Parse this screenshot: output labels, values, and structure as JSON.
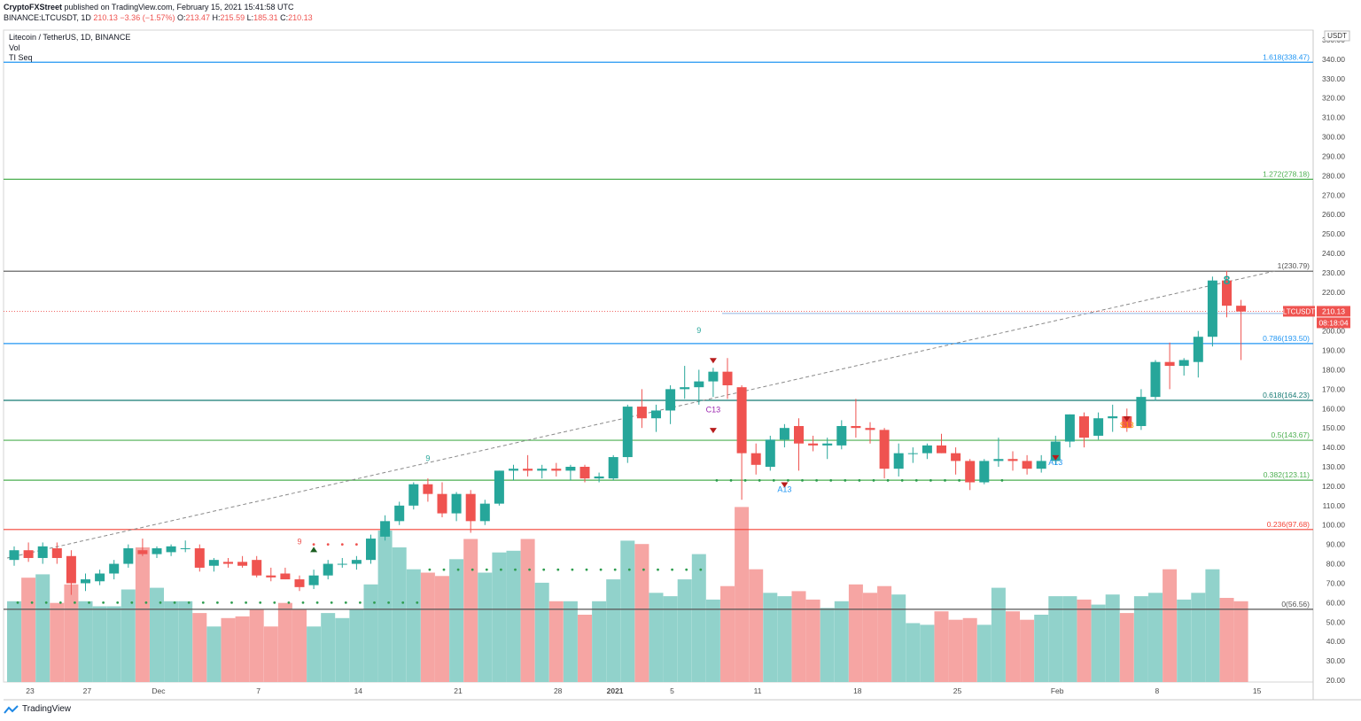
{
  "header": {
    "author": "CryptoFXStreet",
    "published": "published on TradingView.com, February 15, 2021 15:41:58 UTC",
    "symbol_line": {
      "exchange_symbol": "BINANCE:LTCUSDT, 1D",
      "last": "210.13",
      "change": "−3.36 (−1.57%)",
      "o_label": "O:",
      "o": "213.47",
      "h_label": "H:",
      "h": "215.59",
      "l_label": "L:",
      "l": "185.31",
      "c_label": "C:",
      "c": "210.13"
    }
  },
  "legend": {
    "title": "Litecoin / TetherUS, 1D, BINANCE",
    "indicator1": "Vol",
    "indicator2": "TI Seq"
  },
  "footer": {
    "brand": "TradingView"
  },
  "colors": {
    "up": "#26a69a",
    "down": "#ef5350",
    "vol_up": "#91d2cb",
    "vol_down": "#f6a5a3",
    "axis_text": "#4a4a4a",
    "fib_blue": "#2196f3",
    "fib_green": "#4caf50",
    "fib_red": "#f44336",
    "fib_dark": "#555555",
    "fib_teal": "#167a74"
  },
  "chart_data": {
    "type": "candlestick",
    "currency_label": "USDT",
    "price_axis": {
      "min": 20,
      "max": 350,
      "ticks": [
        20,
        30,
        40,
        50,
        60,
        70,
        80,
        90,
        100,
        110,
        120,
        130,
        140,
        150,
        160,
        170,
        180,
        190,
        200,
        210,
        220,
        230,
        240,
        250,
        260,
        270,
        280,
        290,
        300,
        310,
        320,
        330,
        340,
        350
      ]
    },
    "x_labels": [
      {
        "i": 0,
        "text": "23"
      },
      {
        "i": 4,
        "text": "27"
      },
      {
        "i": 9,
        "text": "Dec"
      },
      {
        "i": 16,
        "text": "7"
      },
      {
        "i": 23,
        "text": "14"
      },
      {
        "i": 30,
        "text": "21"
      },
      {
        "i": 37,
        "text": "28"
      },
      {
        "i": 41,
        "text": "2021"
      },
      {
        "i": 45,
        "text": "5"
      },
      {
        "i": 51,
        "text": "11"
      },
      {
        "i": 58,
        "text": "18"
      },
      {
        "i": 65,
        "text": "25"
      },
      {
        "i": 72,
        "text": "Feb"
      },
      {
        "i": 79,
        "text": "8"
      },
      {
        "i": 86,
        "text": "15"
      }
    ],
    "candles": [
      {
        "o": 82,
        "h": 89,
        "l": 79,
        "c": 87,
        "v": 48
      },
      {
        "o": 87,
        "h": 91,
        "l": 81,
        "c": 83,
        "v": 62
      },
      {
        "o": 83,
        "h": 91,
        "l": 80,
        "c": 89,
        "v": 64
      },
      {
        "o": 88,
        "h": 91,
        "l": 80,
        "c": 83,
        "v": 47
      },
      {
        "o": 84,
        "h": 87,
        "l": 64,
        "c": 70,
        "v": 58
      },
      {
        "o": 70,
        "h": 75,
        "l": 66,
        "c": 72,
        "v": 48
      },
      {
        "o": 71,
        "h": 77,
        "l": 69,
        "c": 75,
        "v": 45
      },
      {
        "o": 75,
        "h": 82,
        "l": 72,
        "c": 80,
        "v": 45
      },
      {
        "o": 80,
        "h": 90,
        "l": 78,
        "c": 88,
        "v": 55
      },
      {
        "o": 87,
        "h": 93,
        "l": 84,
        "c": 85,
        "v": 80
      },
      {
        "o": 85,
        "h": 89,
        "l": 83,
        "c": 88,
        "v": 56
      },
      {
        "o": 86,
        "h": 90,
        "l": 84,
        "c": 89,
        "v": 48
      },
      {
        "o": 88,
        "h": 92,
        "l": 86,
        "c": 88,
        "v": 48
      },
      {
        "o": 88,
        "h": 90,
        "l": 76,
        "c": 78,
        "v": 41
      },
      {
        "o": 79,
        "h": 83,
        "l": 76,
        "c": 82,
        "v": 33
      },
      {
        "o": 81,
        "h": 83,
        "l": 78,
        "c": 80,
        "v": 38
      },
      {
        "o": 81,
        "h": 84,
        "l": 78,
        "c": 79,
        "v": 39
      },
      {
        "o": 82,
        "h": 84,
        "l": 73,
        "c": 74,
        "v": 43
      },
      {
        "o": 74,
        "h": 78,
        "l": 71,
        "c": 73,
        "v": 33
      },
      {
        "o": 75,
        "h": 78,
        "l": 72,
        "c": 72,
        "v": 47
      },
      {
        "o": 72,
        "h": 74,
        "l": 66,
        "c": 68,
        "v": 43
      },
      {
        "o": 69,
        "h": 77,
        "l": 67,
        "c": 74,
        "v": 33
      },
      {
        "o": 74,
        "h": 82,
        "l": 72,
        "c": 80,
        "v": 41
      },
      {
        "o": 80,
        "h": 83,
        "l": 78,
        "c": 80,
        "v": 38
      },
      {
        "o": 80,
        "h": 84,
        "l": 77,
        "c": 82,
        "v": 43
      },
      {
        "o": 82,
        "h": 95,
        "l": 80,
        "c": 93,
        "v": 58
      },
      {
        "o": 94,
        "h": 105,
        "l": 92,
        "c": 102,
        "v": 90
      },
      {
        "o": 102,
        "h": 112,
        "l": 100,
        "c": 110,
        "v": 80
      },
      {
        "o": 110,
        "h": 122,
        "l": 108,
        "c": 121,
        "v": 67
      },
      {
        "o": 121,
        "h": 124,
        "l": 112,
        "c": 116,
        "v": 65
      },
      {
        "o": 116,
        "h": 122,
        "l": 104,
        "c": 106,
        "v": 63
      },
      {
        "o": 106,
        "h": 117,
        "l": 102,
        "c": 116,
        "v": 73
      },
      {
        "o": 116,
        "h": 118,
        "l": 96,
        "c": 102,
        "v": 85
      },
      {
        "o": 102,
        "h": 113,
        "l": 100,
        "c": 111,
        "v": 65
      },
      {
        "o": 111,
        "h": 128,
        "l": 110,
        "c": 128,
        "v": 77
      },
      {
        "o": 128,
        "h": 131,
        "l": 123,
        "c": 129,
        "v": 78
      },
      {
        "o": 129,
        "h": 136,
        "l": 125,
        "c": 128,
        "v": 85
      },
      {
        "o": 128,
        "h": 131,
        "l": 124,
        "c": 129,
        "v": 59
      },
      {
        "o": 129,
        "h": 132,
        "l": 125,
        "c": 128,
        "v": 48
      },
      {
        "o": 128,
        "h": 131,
        "l": 123,
        "c": 130,
        "v": 48
      },
      {
        "o": 130,
        "h": 131,
        "l": 122,
        "c": 124,
        "v": 40
      },
      {
        "o": 124,
        "h": 127,
        "l": 122,
        "c": 125,
        "v": 48
      },
      {
        "o": 124,
        "h": 136,
        "l": 123,
        "c": 135,
        "v": 61
      },
      {
        "o": 135,
        "h": 162,
        "l": 132,
        "c": 161,
        "v": 84
      },
      {
        "o": 161,
        "h": 170,
        "l": 150,
        "c": 155,
        "v": 82
      },
      {
        "o": 155,
        "h": 162,
        "l": 148,
        "c": 159,
        "v": 53
      },
      {
        "o": 159,
        "h": 172,
        "l": 152,
        "c": 170,
        "v": 51
      },
      {
        "o": 170,
        "h": 182,
        "l": 165,
        "c": 171,
        "v": 61
      },
      {
        "o": 171,
        "h": 180,
        "l": 162,
        "c": 174,
        "v": 76
      },
      {
        "o": 174,
        "h": 181,
        "l": 166,
        "c": 179,
        "v": 49
      },
      {
        "o": 179,
        "h": 186,
        "l": 165,
        "c": 172,
        "v": 57
      },
      {
        "o": 171,
        "h": 172,
        "l": 113,
        "c": 137,
        "v": 104
      },
      {
        "o": 137,
        "h": 142,
        "l": 126,
        "c": 131,
        "v": 67
      },
      {
        "o": 130,
        "h": 146,
        "l": 128,
        "c": 144,
        "v": 53
      },
      {
        "o": 144,
        "h": 152,
        "l": 140,
        "c": 150,
        "v": 51
      },
      {
        "o": 151,
        "h": 155,
        "l": 128,
        "c": 142,
        "v": 54
      },
      {
        "o": 142,
        "h": 146,
        "l": 138,
        "c": 141,
        "v": 49
      },
      {
        "o": 141,
        "h": 145,
        "l": 134,
        "c": 142,
        "v": 44
      },
      {
        "o": 141,
        "h": 154,
        "l": 139,
        "c": 151,
        "v": 48
      },
      {
        "o": 151,
        "h": 165,
        "l": 145,
        "c": 150,
        "v": 58
      },
      {
        "o": 150,
        "h": 153,
        "l": 142,
        "c": 149,
        "v": 53
      },
      {
        "o": 149,
        "h": 150,
        "l": 124,
        "c": 129,
        "v": 57
      },
      {
        "o": 129,
        "h": 142,
        "l": 125,
        "c": 137,
        "v": 52
      },
      {
        "o": 137,
        "h": 140,
        "l": 132,
        "c": 137,
        "v": 35
      },
      {
        "o": 137,
        "h": 142,
        "l": 134,
        "c": 141,
        "v": 34
      },
      {
        "o": 141,
        "h": 147,
        "l": 137,
        "c": 137,
        "v": 42
      },
      {
        "o": 137,
        "h": 140,
        "l": 126,
        "c": 133,
        "v": 37
      },
      {
        "o": 133,
        "h": 134,
        "l": 118,
        "c": 122,
        "v": 38
      },
      {
        "o": 122,
        "h": 134,
        "l": 121,
        "c": 133,
        "v": 34
      },
      {
        "o": 133,
        "h": 145,
        "l": 130,
        "c": 134,
        "v": 56
      },
      {
        "o": 134,
        "h": 138,
        "l": 128,
        "c": 133,
        "v": 42
      },
      {
        "o": 133,
        "h": 136,
        "l": 126,
        "c": 129,
        "v": 37
      },
      {
        "o": 129,
        "h": 136,
        "l": 127,
        "c": 133,
        "v": 40
      },
      {
        "o": 133,
        "h": 146,
        "l": 131,
        "c": 143,
        "v": 51
      },
      {
        "o": 143,
        "h": 157,
        "l": 140,
        "c": 157,
        "v": 51
      },
      {
        "o": 156,
        "h": 158,
        "l": 140,
        "c": 145,
        "v": 49
      },
      {
        "o": 146,
        "h": 158,
        "l": 144,
        "c": 155,
        "v": 46
      },
      {
        "o": 155,
        "h": 162,
        "l": 148,
        "c": 156,
        "v": 52
      },
      {
        "o": 156,
        "h": 160,
        "l": 148,
        "c": 150,
        "v": 41
      },
      {
        "o": 151,
        "h": 170,
        "l": 149,
        "c": 166,
        "v": 51
      },
      {
        "o": 166,
        "h": 185,
        "l": 164,
        "c": 184,
        "v": 53
      },
      {
        "o": 184,
        "h": 194,
        "l": 170,
        "c": 182,
        "v": 67
      },
      {
        "o": 182,
        "h": 186,
        "l": 177,
        "c": 185,
        "v": 49
      },
      {
        "o": 184,
        "h": 200,
        "l": 176,
        "c": 197,
        "v": 53
      },
      {
        "o": 197,
        "h": 228,
        "l": 192,
        "c": 226,
        "v": 67
      },
      {
        "o": 226,
        "h": 231,
        "l": 207,
        "c": 213,
        "v": 50
      },
      {
        "o": 213,
        "h": 216,
        "l": 185,
        "c": 210,
        "v": 48
      }
    ],
    "fib_levels": [
      {
        "price": 338.47,
        "label": "1.618(338.47)",
        "color": "fib_blue"
      },
      {
        "price": 278.18,
        "label": "1.272(278.18)",
        "color": "fib_green"
      },
      {
        "price": 230.79,
        "label": "1(230.79)",
        "color": "fib_dark"
      },
      {
        "price": 193.5,
        "label": "0.786(193.50)",
        "color": "fib_blue"
      },
      {
        "price": 164.23,
        "label": "0.618(164.23)",
        "color": "fib_teal"
      },
      {
        "price": 143.67,
        "label": "0.5(143.67)",
        "color": "fib_green"
      },
      {
        "price": 123.11,
        "label": "0.382(123.11)",
        "color": "fib_green"
      },
      {
        "price": 97.68,
        "label": "0.236(97.68)",
        "color": "fib_red"
      },
      {
        "price": 56.56,
        "label": "0(56.56)",
        "color": "fib_dark"
      }
    ],
    "current_price": {
      "price": 210.13,
      "symbol": "LTCUSDT",
      "value": "210.13",
      "countdown": "08:18:04"
    },
    "seq_labels": [
      {
        "i": 48,
        "price": 199,
        "text": "9",
        "color": "#26a69a"
      },
      {
        "i": 49,
        "price": 158,
        "text": "C13",
        "color": "#9c27b0"
      },
      {
        "i": 54,
        "price": 117,
        "text": "A13",
        "color": "#2196f3"
      },
      {
        "i": 73,
        "price": 131,
        "text": "A13",
        "color": "#2196f3"
      },
      {
        "i": 78,
        "price": 150,
        "text": "S13",
        "color": "#ff9800"
      },
      {
        "i": 85,
        "price": 224,
        "text": "8",
        "color": "#26a69a"
      },
      {
        "i": 29,
        "price": 133,
        "text": "9",
        "color": "#26a69a"
      },
      {
        "i": 20,
        "price": 90,
        "text": "9",
        "color": "#ef5350"
      }
    ]
  }
}
